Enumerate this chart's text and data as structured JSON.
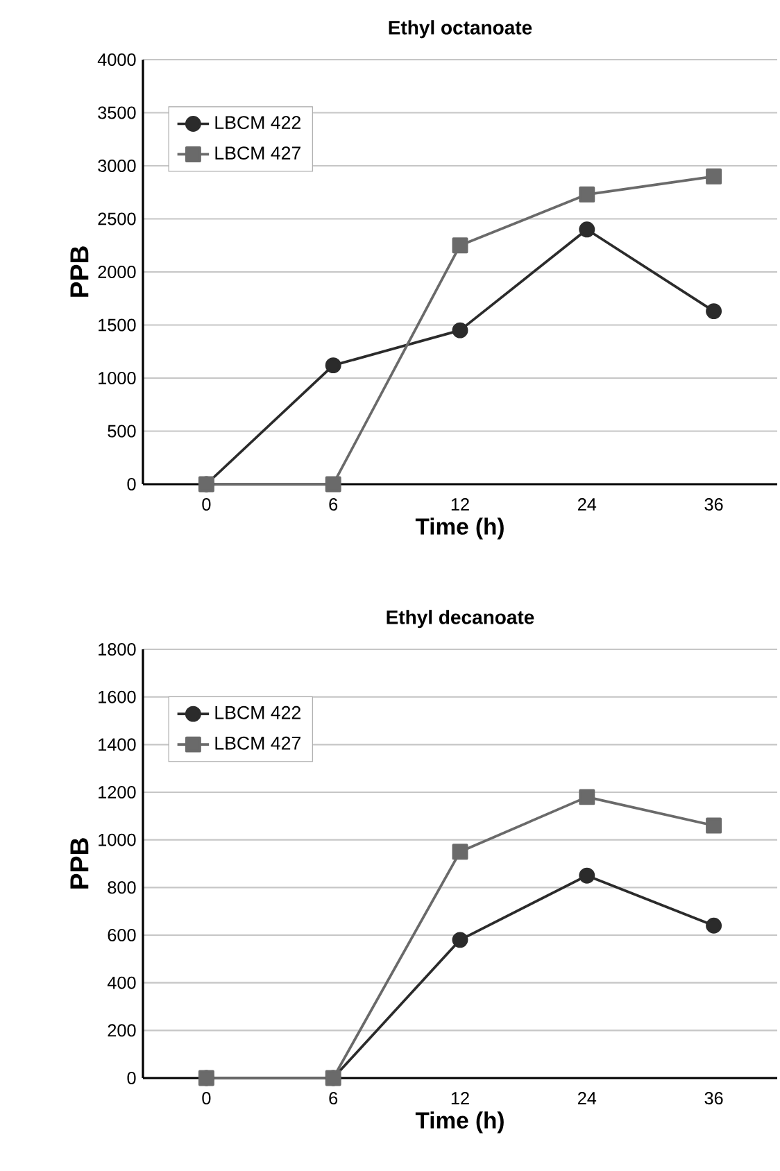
{
  "chart_data": [
    {
      "type": "line",
      "title": "Ethyl octanoate",
      "xlabel": "Time (h)",
      "ylabel": "PPB",
      "categories": [
        "0",
        "6",
        "12",
        "24",
        "36"
      ],
      "series": [
        {
          "name": "LBCM 422",
          "color": "#2b2b2b",
          "marker": "circle",
          "values": [
            0,
            1120,
            1450,
            2400,
            1630
          ]
        },
        {
          "name": "LBCM 427",
          "color": "#6a6a6a",
          "marker": "square",
          "values": [
            0,
            0,
            2250,
            2730,
            2900
          ]
        }
      ],
      "ylim": [
        0,
        4000
      ],
      "yticks": [
        0,
        500,
        1000,
        1500,
        2000,
        2500,
        3000,
        3500,
        4000
      ],
      "grid": "y",
      "legend": "top left",
      "line_style": "solid"
    },
    {
      "type": "line",
      "title": "Ethyl decanoate",
      "xlabel": "Time (h)",
      "ylabel": "PPB",
      "categories": [
        "0",
        "6",
        "12",
        "24",
        "36"
      ],
      "series": [
        {
          "name": "LBCM 422",
          "color": "#2b2b2b",
          "marker": "circle",
          "values": [
            0,
            0,
            580,
            850,
            640
          ]
        },
        {
          "name": "LBCM 427",
          "color": "#6a6a6a",
          "marker": "square",
          "values": [
            0,
            0,
            950,
            1180,
            1060
          ]
        }
      ],
      "ylim": [
        0,
        1800
      ],
      "yticks": [
        0,
        200,
        400,
        600,
        800,
        1000,
        1200,
        1400,
        1600,
        1800
      ],
      "grid": "y",
      "legend": "top left",
      "line_style": "solid"
    }
  ]
}
